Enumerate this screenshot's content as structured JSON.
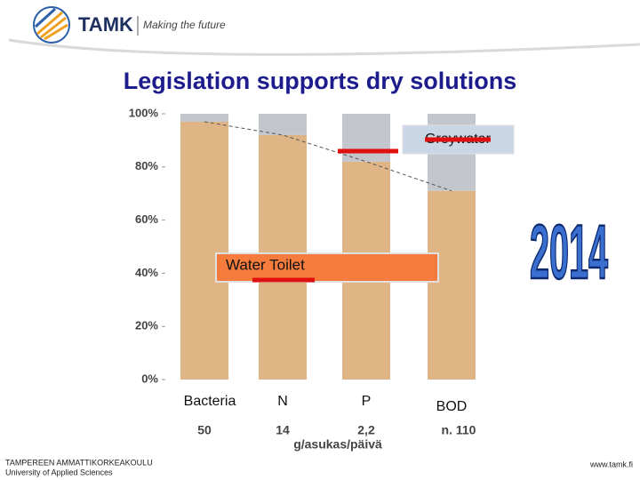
{
  "header": {
    "brand": "TAMK",
    "slogan": "Making the future"
  },
  "title": "Legislation supports dry solutions",
  "chart_data": {
    "type": "stacked_bar",
    "categories": [
      "Bacteria",
      "N",
      "P",
      "BOD"
    ],
    "series": [
      {
        "name": "Water Toilet",
        "color": "#dfb586",
        "values": [
          97,
          92,
          82,
          71
        ]
      },
      {
        "name": "Greywater",
        "color": "#c3c6cc",
        "values": [
          3,
          8,
          18,
          29
        ]
      }
    ],
    "ylim": [
      0,
      100
    ],
    "yticks": [
      {
        "value": 0,
        "label": "0%"
      },
      {
        "value": 20,
        "label": "20%"
      },
      {
        "value": 40,
        "label": "40%"
      },
      {
        "value": 60,
        "label": "60%"
      },
      {
        "value": 80,
        "label": "80%"
      },
      {
        "value": 100,
        "label": "100%"
      }
    ],
    "loads": [
      "50",
      "14",
      "2,2",
      "n. 110"
    ],
    "load_unit": "g/asukas/päivä"
  },
  "badge": "2014",
  "footer": {
    "school": "TAMPEREEN AMMATTIKORKEAKOULU",
    "subtitle": "University of Applied Sciences",
    "url": "www.tamk.fi"
  }
}
